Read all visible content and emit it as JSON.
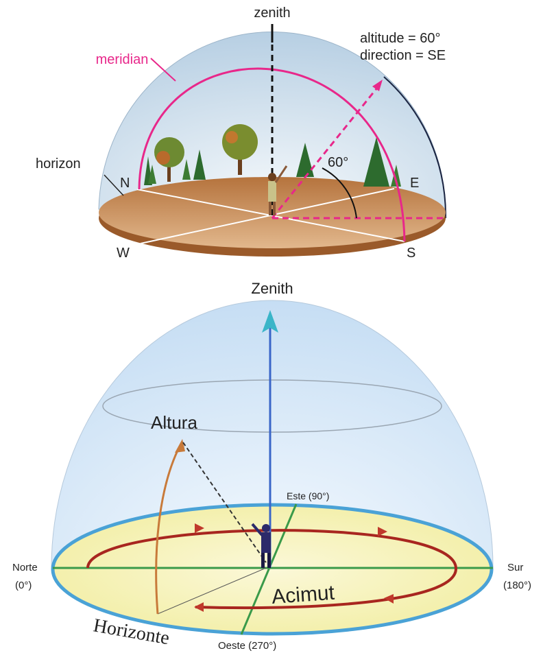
{
  "top": {
    "zenith": "zenith",
    "meridian": "meridian",
    "altitude": "altitude = 60°",
    "direction": "direction = SE",
    "horizon": "horizon",
    "angle": "60°",
    "north": "N",
    "east": "E",
    "west": "W",
    "south": "S"
  },
  "bottom": {
    "zenith": "Zenith",
    "altitude": "Altura",
    "east": "Este (90°)",
    "north": "Norte",
    "north_deg": "(0°)",
    "south": "Sur",
    "south_deg": "(180°)",
    "azimuth": "Acimut",
    "horizon": "Horizonte",
    "west": "Oeste (270°)"
  }
}
